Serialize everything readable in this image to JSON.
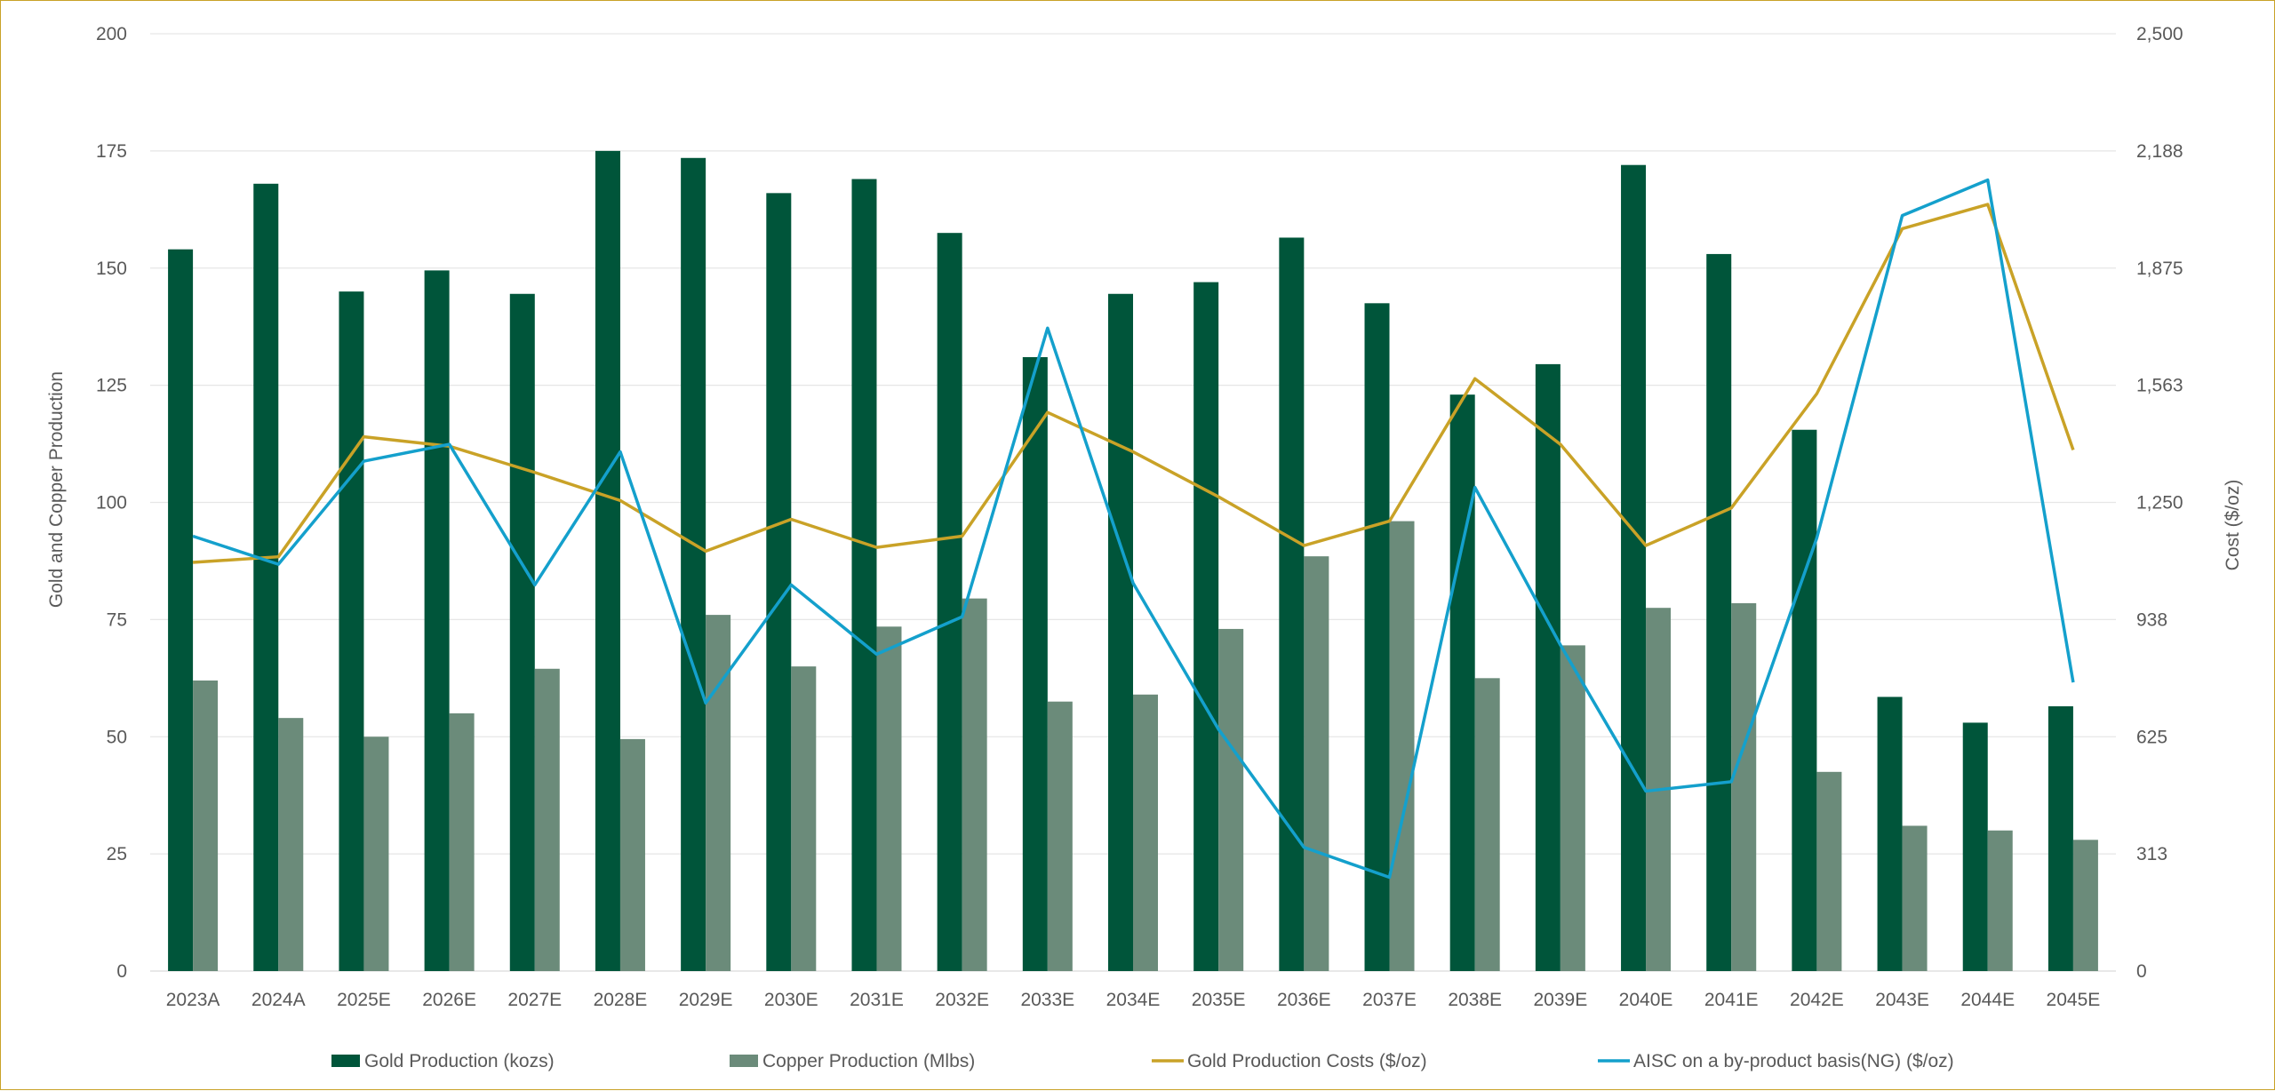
{
  "chart_data": {
    "type": "bar",
    "categories": [
      "2023A",
      "2024A",
      "2025E",
      "2026E",
      "2027E",
      "2028E",
      "2029E",
      "2030E",
      "2031E",
      "2032E",
      "2033E",
      "2034E",
      "2035E",
      "2036E",
      "2037E",
      "2038E",
      "2039E",
      "2040E",
      "2041E",
      "2042E",
      "2043E",
      "2044E",
      "2045E"
    ],
    "series": [
      {
        "name": "Gold Production (kozs)",
        "type": "bar",
        "axis": "left",
        "color": "#00553a",
        "values": [
          154,
          168,
          145,
          149.5,
          144.5,
          175,
          173.5,
          166,
          169,
          157.5,
          131,
          144.5,
          147,
          156.5,
          142.5,
          123,
          129.5,
          172,
          153,
          115.5,
          58.5,
          53,
          56.5
        ]
      },
      {
        "name": "Copper Production (Mlbs)",
        "type": "bar",
        "axis": "left",
        "color": "#6b8b7a",
        "values": [
          62,
          54,
          50,
          55,
          64.5,
          49.5,
          76,
          65,
          73.5,
          79.5,
          57.5,
          59,
          73,
          88.5,
          96,
          62.5,
          69.5,
          77.5,
          78.5,
          42.5,
          31,
          30,
          28
        ]
      },
      {
        "name": "Gold Production Costs ($/oz)",
        "type": "line",
        "axis": "right",
        "color": "#c9a227",
        "values": [
          1090,
          1105,
          1425,
          1400,
          1330,
          1255,
          1120,
          1205,
          1130,
          1160,
          1490,
          1385,
          1265,
          1135,
          1200,
          1580,
          1405,
          1135,
          1235,
          1540,
          1980,
          2045,
          1390
        ]
      },
      {
        "name": "AISC on a by-product basis(NG) ($/oz)",
        "type": "line",
        "axis": "right",
        "color": "#14a0cc",
        "values": [
          1160,
          1085,
          1360,
          1405,
          1030,
          1385,
          715,
          1030,
          845,
          945,
          1715,
          1035,
          645,
          330,
          250,
          1290,
          870,
          480,
          505,
          1155,
          2015,
          2110,
          770
        ]
      }
    ],
    "ylabel": "Gold and Copper Production",
    "y2label": "Cost ($/oz)",
    "ylim": [
      0,
      200
    ],
    "y2lim": [
      0,
      2500
    ],
    "yticks": [
      "0",
      "25",
      "50",
      "75",
      "100",
      "125",
      "150",
      "175",
      "200"
    ],
    "y2ticks": [
      "0",
      "313",
      "625",
      "938",
      "1,250",
      "1,563",
      "1,875",
      "2,188",
      "2,500"
    ],
    "grid": true,
    "legend_position": "bottom"
  }
}
